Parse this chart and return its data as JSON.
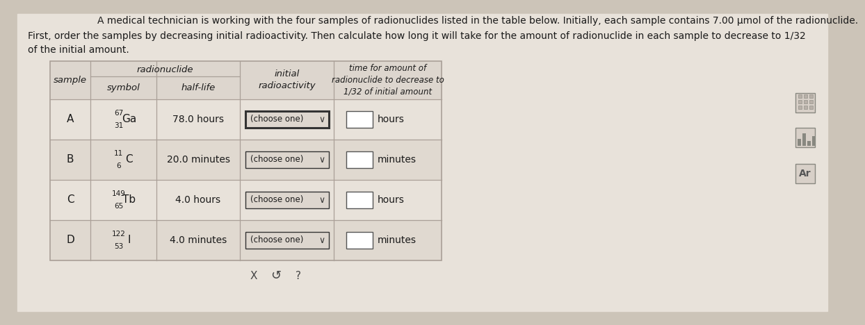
{
  "title_line1": "A medical technician is working with the four samples of radionuclides listed in the table below. Initially, each sample contains 7.00 μmol of the radionuclide.",
  "title_line2": "First, order the samples by decreasing initial radioactivity. Then calculate how long it will take for the amount of radionuclide in each sample to decrease to 1/32",
  "title_line3": "of the initial amount.",
  "bg_color": "#ddd5c8",
  "table_bg_light": "#e8e0d8",
  "table_bg_stripe": "#ddd5cc",
  "border_color": "#aaa098",
  "text_color": "#1a1a1a",
  "samples": [
    "A",
    "B",
    "C",
    "D"
  ],
  "symbols": [
    {
      "mass": "67",
      "element": "Ga",
      "atomic": "31"
    },
    {
      "mass": "11",
      "element": "C",
      "atomic": "6"
    },
    {
      "mass": "149",
      "element": "Tb",
      "atomic": "65"
    },
    {
      "mass": "122",
      "element": "I",
      "atomic": "53"
    }
  ],
  "half_lives": [
    "78.0 hours",
    "20.0 minutes",
    "4.0 hours",
    "4.0 minutes"
  ],
  "time_units": [
    "hours",
    "minutes",
    "hours",
    "minutes"
  ],
  "dropdown_text": "(choose one)",
  "dropdown_border_A": "#222222",
  "dropdown_border": "#666666",
  "input_box_color": "#ffffff",
  "fig_bg": "#ccc4b8"
}
